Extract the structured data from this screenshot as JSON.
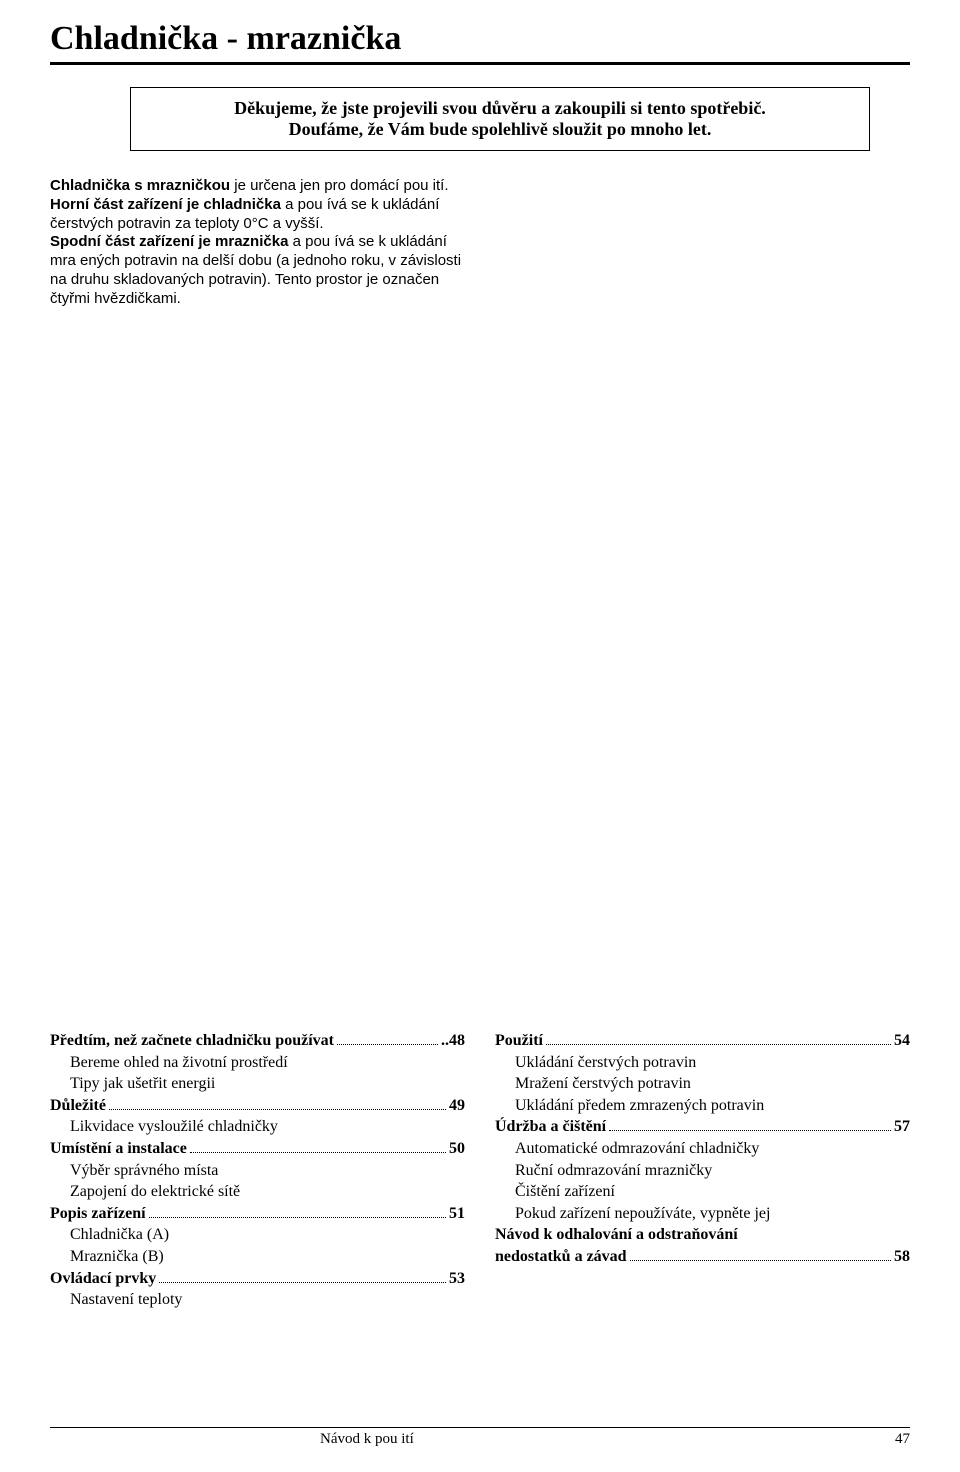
{
  "title": "Chladnička - mraznička",
  "thankbox_line1": "Děkujeme, že jste projevili svou důvěru a zakoupili si tento spotřebič.",
  "thankbox_line2": "Doufáme, že Vám bude spolehlivě sloužit po mnoho let.",
  "intro": {
    "p1_b1": "Chladnička s mrazničkou",
    "p1_t1": " je určena jen pro domácí pou  ití.",
    "p2_b1": "Horní část zařízení je chladnička",
    "p2_t1": " a pou  ívá se k ukládání čerstvých potravin za teploty 0°C a vyšší.",
    "p3_b1": "Spodní část zařízení je mraznička",
    "p3_t1": " a pou  ívá se k ukládání mra  ených potravin na delší dobu (a  jednoho roku, v závislosti na druhu skladovaných potravin). Tento prostor je označen čtyřmi hvězdičkami."
  },
  "toc_left": [
    {
      "label": "Předtím, než začnete chladničku používat",
      "page": "..48",
      "bold": true
    },
    {
      "label": "Bereme ohled na životní prostředí",
      "sub": true
    },
    {
      "label": "Tipy jak ušetřit energii",
      "sub": true
    },
    {
      "label": "Důležité",
      "page": "49",
      "bold": true
    },
    {
      "label": "Likvidace vysloužilé chladničky",
      "sub": true
    },
    {
      "label": "Umístění a instalace",
      "page": "50",
      "bold": true
    },
    {
      "label": "Výběr správného místa",
      "sub": true
    },
    {
      "label": "Zapojení do elektrické sítě",
      "sub": true
    },
    {
      "label": "Popis zařízení",
      "page": "51",
      "bold": true
    },
    {
      "label": "Chladnička (A)",
      "sub": true
    },
    {
      "label": "Mraznička (B)",
      "sub": true
    },
    {
      "label": "Ovládací prvky",
      "page": "53",
      "bold": true
    },
    {
      "label": "Nastavení teploty",
      "sub": true
    }
  ],
  "toc_right": [
    {
      "label": "Použití",
      "page": " 54",
      "bold": true
    },
    {
      "label": "Ukládání čerstvých potravin",
      "sub": true
    },
    {
      "label": "Mražení čerstvých potravin",
      "sub": true
    },
    {
      "label": "Ukládání předem zmrazených potravin",
      "sub": true
    },
    {
      "label": "Údržba a čištění",
      "page": " 57",
      "bold": true
    },
    {
      "label": "Automatické odmrazování chladničky",
      "sub": true
    },
    {
      "label": "Ruční odmrazování mrazničky",
      "sub": true
    },
    {
      "label": "Čištění zařízení",
      "sub": true
    },
    {
      "label": "Pokud zařízení nepoužíváte, vypněte jej",
      "sub": true
    },
    {
      "label": "Návod k odhalování a odstraňování",
      "bold": true,
      "nopagerow": true
    },
    {
      "label": "nedostatků a závad",
      "page": " 58",
      "bold": true
    }
  ],
  "footer_text": "Návod k pou  ití",
  "footer_page": "47"
}
